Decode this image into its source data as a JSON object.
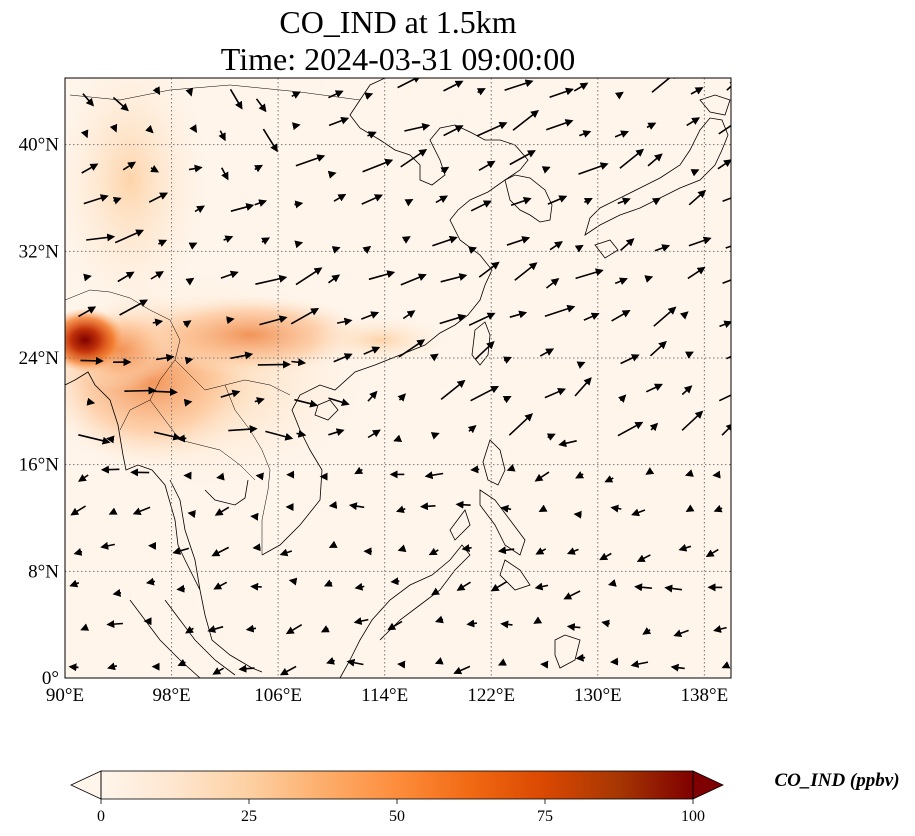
{
  "title": {
    "line1": "CO_IND at 1.5km",
    "line2": "Time: 2024-03-31 09:00:00"
  },
  "map": {
    "lon_range": [
      90,
      140
    ],
    "lat_range": [
      0,
      45
    ],
    "gridlines": "dotted",
    "lon_ticks": [
      {
        "value": 90,
        "label": "90°E"
      },
      {
        "value": 98,
        "label": "98°E"
      },
      {
        "value": 106,
        "label": "106°E"
      },
      {
        "value": 114,
        "label": "114°E"
      },
      {
        "value": 122,
        "label": "122°E"
      },
      {
        "value": 130,
        "label": "130°E"
      },
      {
        "value": 138,
        "label": "138°E"
      }
    ],
    "lat_ticks": [
      {
        "value": 0,
        "label": "0°"
      },
      {
        "value": 8,
        "label": "8°N"
      },
      {
        "value": 16,
        "label": "16°N"
      },
      {
        "value": 24,
        "label": "24°N"
      },
      {
        "value": 32,
        "label": "32°N"
      },
      {
        "value": 40,
        "label": "40°N"
      }
    ]
  },
  "colorbar": {
    "label": "CO_IND (ppbv)",
    "min": 0,
    "max": 100,
    "ticks": [
      "0",
      "25",
      "50",
      "75",
      "100"
    ],
    "extend": "both",
    "colors": [
      "#fff5eb",
      "#fee6ce",
      "#fdd0a2",
      "#fdae6b",
      "#fd8d3c",
      "#f16913",
      "#d94801",
      "#a63603",
      "#7f0000"
    ]
  }
}
